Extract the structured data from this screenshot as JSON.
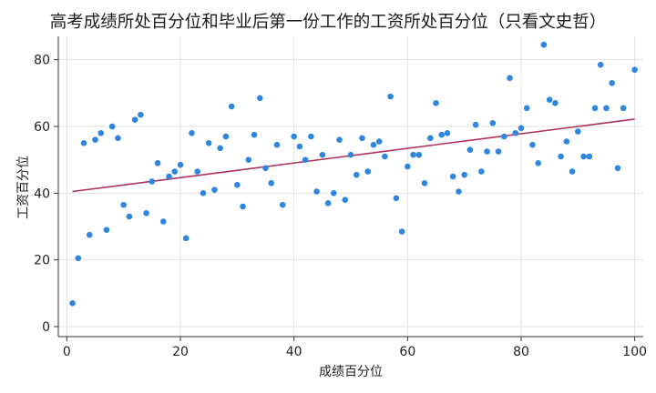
{
  "chart_data": {
    "type": "scatter",
    "title": "高考成绩所处百分位和毕业后第一份工作的工资所处百分位（只看文史哲）",
    "xlabel": "成绩百分位",
    "ylabel": "工资百分位",
    "xlim": [
      -1.5,
      101.5
    ],
    "ylim": [
      -3,
      87
    ],
    "xticks": [
      0,
      20,
      40,
      60,
      80,
      100
    ],
    "yticks": [
      0,
      20,
      40,
      60,
      80
    ],
    "grid": true,
    "legend": "none",
    "colors": {
      "points": "#2e86de",
      "fit_line": "#b0305c",
      "grid": "#e2e2e2",
      "axis": "#333333"
    },
    "fit_line": {
      "x": [
        1,
        100
      ],
      "y": [
        40.5,
        62.2
      ]
    },
    "points": [
      [
        1,
        7
      ],
      [
        2,
        20.5
      ],
      [
        3,
        55
      ],
      [
        4,
        27.5
      ],
      [
        5,
        56
      ],
      [
        6,
        58
      ],
      [
        7,
        29
      ],
      [
        8,
        60
      ],
      [
        9,
        56.5
      ],
      [
        10,
        36.5
      ],
      [
        11,
        33
      ],
      [
        12,
        62
      ],
      [
        13,
        63.5
      ],
      [
        14,
        34
      ],
      [
        15,
        43.5
      ],
      [
        16,
        49
      ],
      [
        17,
        31.5
      ],
      [
        18,
        45
      ],
      [
        19,
        46.5
      ],
      [
        20,
        48.5
      ],
      [
        21,
        26.5
      ],
      [
        22,
        58
      ],
      [
        23,
        46.5
      ],
      [
        24,
        40
      ],
      [
        25,
        55
      ],
      [
        26,
        41
      ],
      [
        27,
        53.5
      ],
      [
        28,
        57
      ],
      [
        29,
        66
      ],
      [
        30,
        42.5
      ],
      [
        31,
        36
      ],
      [
        32,
        50
      ],
      [
        33,
        57.5
      ],
      [
        34,
        68.5
      ],
      [
        35,
        47.5
      ],
      [
        36,
        43
      ],
      [
        37,
        54.5
      ],
      [
        38,
        36.5
      ],
      [
        40,
        57
      ],
      [
        41,
        54
      ],
      [
        42,
        50
      ],
      [
        43,
        57
      ],
      [
        44,
        40.5
      ],
      [
        45,
        51.5
      ],
      [
        46,
        37
      ],
      [
        47,
        40
      ],
      [
        48,
        56
      ],
      [
        49,
        38
      ],
      [
        50,
        51.5
      ],
      [
        51,
        45.5
      ],
      [
        52,
        56.5
      ],
      [
        53,
        46.5
      ],
      [
        54,
        54.5
      ],
      [
        55,
        55.5
      ],
      [
        56,
        51
      ],
      [
        57,
        69
      ],
      [
        58,
        38.5
      ],
      [
        59,
        28.5
      ],
      [
        60,
        48
      ],
      [
        61,
        51.5
      ],
      [
        62,
        51.5
      ],
      [
        63,
        43
      ],
      [
        64,
        56.5
      ],
      [
        65,
        67
      ],
      [
        66,
        57.5
      ],
      [
        67,
        58
      ],
      [
        68,
        45
      ],
      [
        69,
        40.5
      ],
      [
        70,
        45.5
      ],
      [
        71,
        53
      ],
      [
        72,
        60.5
      ],
      [
        73,
        46.5
      ],
      [
        74,
        52.5
      ],
      [
        75,
        61
      ],
      [
        76,
        52.5
      ],
      [
        77,
        57
      ],
      [
        78,
        74.5
      ],
      [
        79,
        58
      ],
      [
        80,
        59.5
      ],
      [
        81,
        65.5
      ],
      [
        82,
        54.5
      ],
      [
        83,
        49
      ],
      [
        84,
        84.5
      ],
      [
        85,
        68
      ],
      [
        86,
        67
      ],
      [
        87,
        51
      ],
      [
        88,
        55.5
      ],
      [
        89,
        46.5
      ],
      [
        90,
        58.5
      ],
      [
        91,
        51
      ],
      [
        92,
        51
      ],
      [
        93,
        65.5
      ],
      [
        94,
        78.5
      ],
      [
        95,
        65.5
      ],
      [
        96,
        73
      ],
      [
        97,
        47.5
      ],
      [
        98,
        65.5
      ],
      [
        100,
        77
      ]
    ]
  }
}
